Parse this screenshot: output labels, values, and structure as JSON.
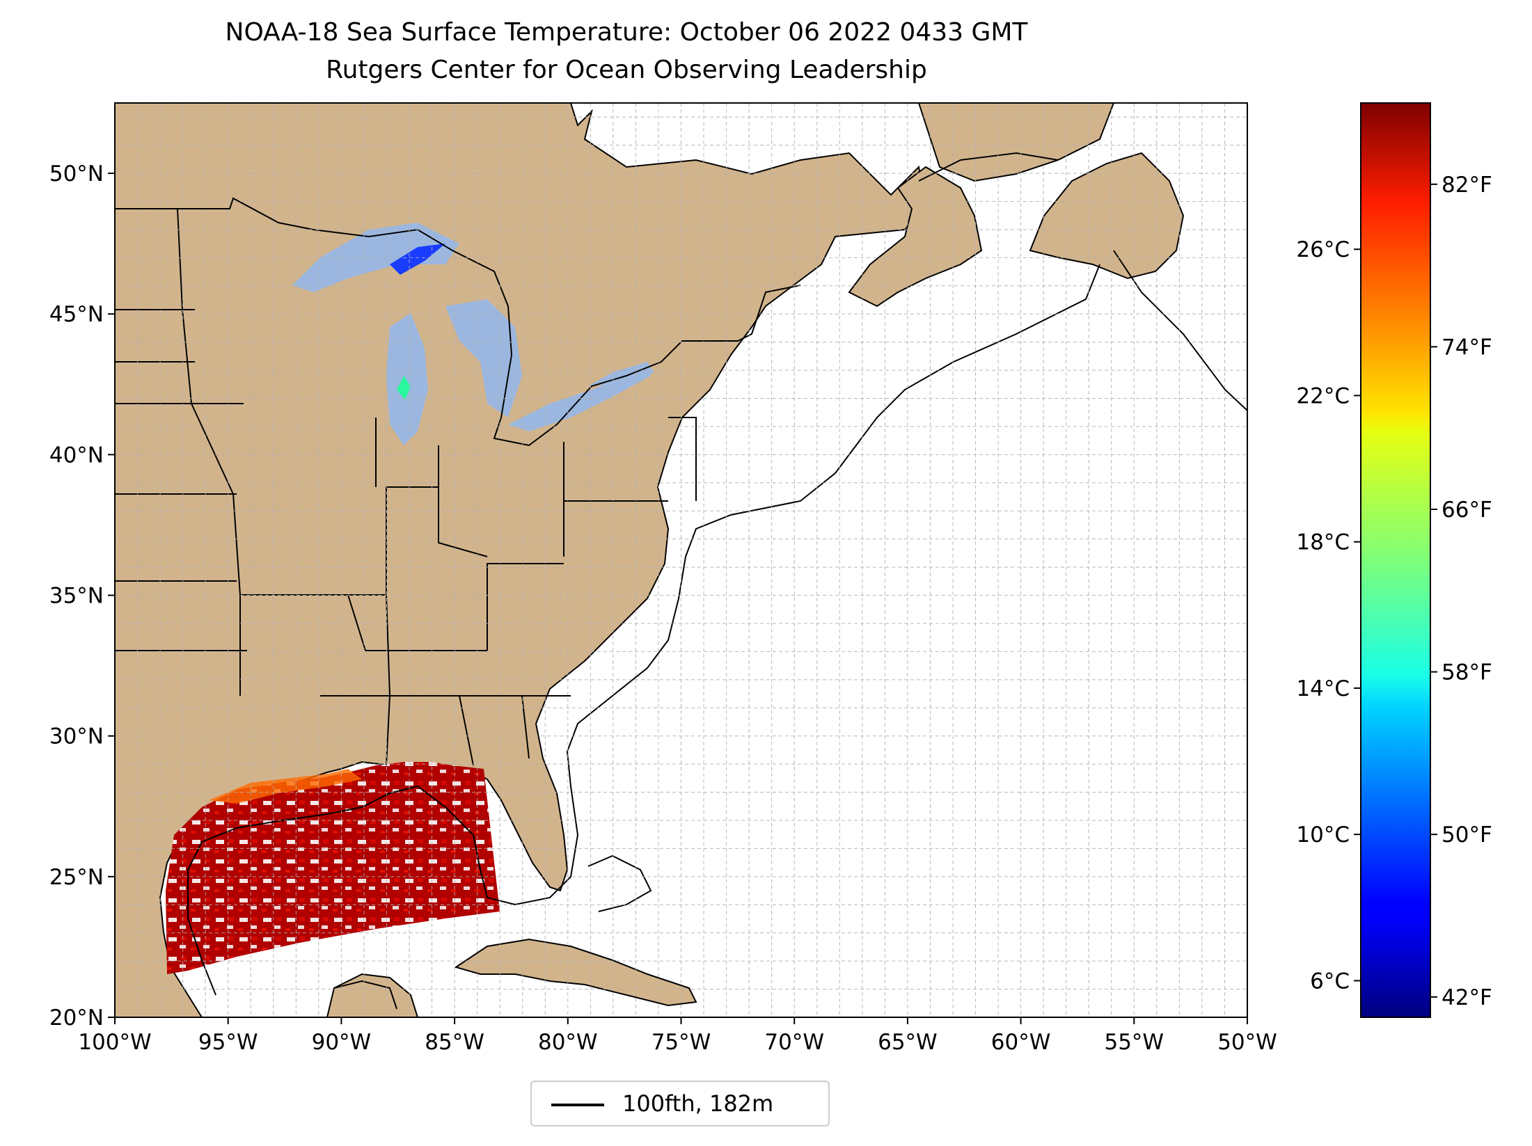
{
  "title": "NOAA-18 Sea Surface Temperature: October 06 2022 0433 GMT",
  "subtitle": "Rutgers Center for Ocean Observing Leadership",
  "map": {
    "lat_range": [
      20,
      52.5
    ],
    "lon_range": [
      -100,
      -50
    ],
    "lat_ticks": [
      {
        "value": 20,
        "label": "20°N"
      },
      {
        "value": 25,
        "label": "25°N"
      },
      {
        "value": 30,
        "label": "30°N"
      },
      {
        "value": 35,
        "label": "35°N"
      },
      {
        "value": 40,
        "label": "40°N"
      },
      {
        "value": 45,
        "label": "45°N"
      },
      {
        "value": 50,
        "label": "50°N"
      }
    ],
    "lon_ticks": [
      {
        "value": -100,
        "label": "100°W"
      },
      {
        "value": -95,
        "label": "95°W"
      },
      {
        "value": -90,
        "label": "90°W"
      },
      {
        "value": -85,
        "label": "85°W"
      },
      {
        "value": -80,
        "label": "80°W"
      },
      {
        "value": -75,
        "label": "75°W"
      },
      {
        "value": -70,
        "label": "70°W"
      },
      {
        "value": -65,
        "label": "65°W"
      },
      {
        "value": -60,
        "label": "60°W"
      },
      {
        "value": -55,
        "label": "55°W"
      },
      {
        "value": -50,
        "label": "50°W"
      }
    ],
    "land_color": "#d2b48c",
    "lake_color": "#9bb7e0",
    "ocean_color": "#ffffff",
    "grid": "dashed light gray at 1 degree"
  },
  "colorbar": {
    "colormap": "jet",
    "celsius_range": [
      5,
      30
    ],
    "celsius_ticks": [
      {
        "value": 6,
        "label": "6°C"
      },
      {
        "value": 10,
        "label": "10°C"
      },
      {
        "value": 14,
        "label": "14°C"
      },
      {
        "value": 18,
        "label": "18°C"
      },
      {
        "value": 22,
        "label": "22°C"
      },
      {
        "value": 26,
        "label": "26°C"
      }
    ],
    "fahrenheit_ticks": [
      {
        "value": 42,
        "label": "42°F"
      },
      {
        "value": 50,
        "label": "50°F"
      },
      {
        "value": 58,
        "label": "58°F"
      },
      {
        "value": 66,
        "label": "66°F"
      },
      {
        "value": 74,
        "label": "74°F"
      },
      {
        "value": 82,
        "label": "82°F"
      }
    ]
  },
  "legend": {
    "label": "100fth, 182m"
  }
}
